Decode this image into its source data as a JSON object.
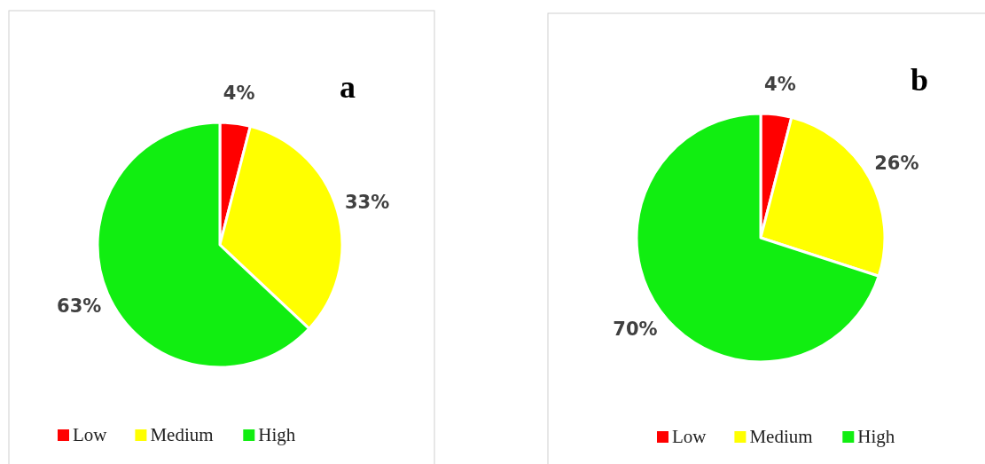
{
  "chart_data": [
    {
      "type": "pie",
      "title": "a",
      "categories": [
        "Low",
        "Medium",
        "High"
      ],
      "values": [
        4,
        33,
        63
      ],
      "colors": [
        "#ff0000",
        "#ffff00",
        "#11ee11"
      ],
      "value_labels": [
        "4%",
        "33%",
        "63%"
      ],
      "legend": "bottom"
    },
    {
      "type": "pie",
      "title": "b",
      "categories": [
        "Low",
        "Medium",
        "High"
      ],
      "values": [
        4,
        26,
        70
      ],
      "colors": [
        "#ff0000",
        "#ffff00",
        "#11ee11"
      ],
      "value_labels": [
        "4%",
        "26%",
        "70%"
      ],
      "legend": "bottom"
    }
  ]
}
